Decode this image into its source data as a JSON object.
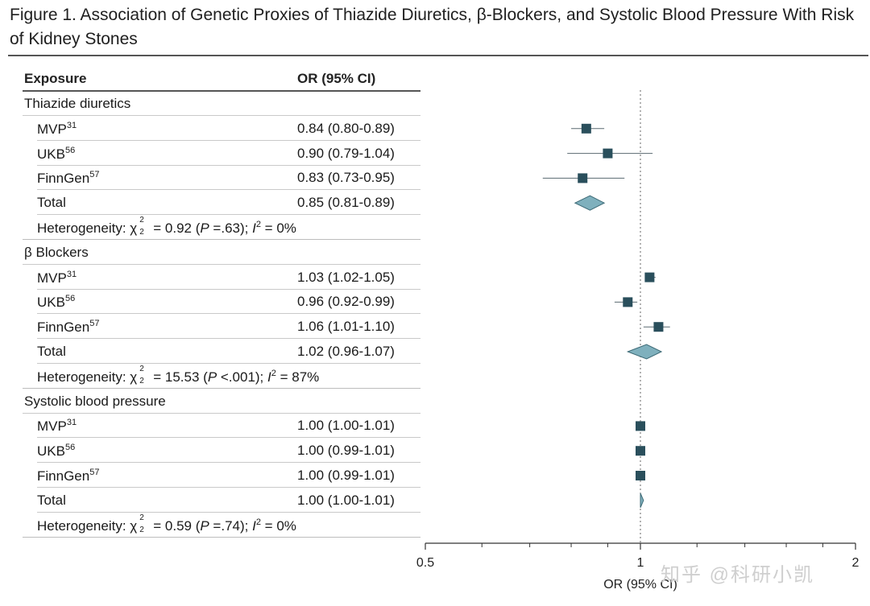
{
  "title": "Figure 1. Association of Genetic Proxies of Thiazide Diuretics, β-Blockers, and Systolic Blood Pressure With Risk of Kidney Stones",
  "columns": {
    "exposure": "Exposure",
    "or": "OR (95% CI)"
  },
  "groups": [
    {
      "name": "Thiazide diuretics",
      "studies": [
        {
          "name": "MVP",
          "ref": "31",
          "or_text": "0.84 (0.80-0.89)",
          "or": 0.84,
          "lo": 0.8,
          "hi": 0.89
        },
        {
          "name": "UKB",
          "ref": "56",
          "or_text": "0.90 (0.79-1.04)",
          "or": 0.9,
          "lo": 0.79,
          "hi": 1.04
        },
        {
          "name": "FinnGen",
          "ref": "57",
          "or_text": "0.83 (0.73-0.95)",
          "or": 0.83,
          "lo": 0.73,
          "hi": 0.95
        }
      ],
      "total": {
        "label": "Total",
        "or_text": "0.85 (0.81-0.89)",
        "or": 0.85,
        "lo": 0.81,
        "hi": 0.89
      },
      "het": {
        "prefix": "Heterogeneity: ",
        "chi_sup": "2",
        "chi_sub": "2",
        "chi_val": "= 0.92 (",
        "p": "P",
        "p_val": " =.63); ",
        "i": "I",
        "i_sup": "2",
        "i_val": " = 0%"
      }
    },
    {
      "name": "β Blockers",
      "studies": [
        {
          "name": "MVP",
          "ref": "31",
          "or_text": "1.03 (1.02-1.05)",
          "or": 1.03,
          "lo": 1.02,
          "hi": 1.05
        },
        {
          "name": "UKB",
          "ref": "56",
          "or_text": "0.96 (0.92-0.99)",
          "or": 0.96,
          "lo": 0.92,
          "hi": 0.99
        },
        {
          "name": "FinnGen",
          "ref": "57",
          "or_text": "1.06 (1.01-1.10)",
          "or": 1.06,
          "lo": 1.01,
          "hi": 1.1
        }
      ],
      "total": {
        "label": "Total",
        "or_text": "1.02 (0.96-1.07)",
        "or": 1.02,
        "lo": 0.96,
        "hi": 1.07
      },
      "het": {
        "prefix": "Heterogeneity: ",
        "chi_sup": "2",
        "chi_sub": "2",
        "chi_val": "= 15.53 (",
        "p": "P",
        "p_val": " <.001); ",
        "i": "I",
        "i_sup": "2",
        "i_val": " = 87%"
      }
    },
    {
      "name": "Systolic blood pressure",
      "studies": [
        {
          "name": "MVP",
          "ref": "31",
          "or_text": "1.00 (1.00-1.01)",
          "or": 1.0,
          "lo": 1.0,
          "hi": 1.01
        },
        {
          "name": "UKB",
          "ref": "56",
          "or_text": "1.00 (0.99-1.01)",
          "or": 1.0,
          "lo": 0.99,
          "hi": 1.01
        },
        {
          "name": "FinnGen",
          "ref": "57",
          "or_text": "1.00 (0.99-1.01)",
          "or": 1.0,
          "lo": 0.99,
          "hi": 1.01
        }
      ],
      "total": {
        "label": "Total",
        "or_text": "1.00 (1.00-1.01)",
        "or": 1.0,
        "lo": 1.0,
        "hi": 1.01
      },
      "het": {
        "prefix": "Heterogeneity: ",
        "chi_sup": "2",
        "chi_sub": "2",
        "chi_val": "= 0.59 (",
        "p": "P",
        "p_val": " =.74); ",
        "i": "I",
        "i_sup": "2",
        "i_val": " = 0%"
      }
    }
  ],
  "chart_data": {
    "type": "forest",
    "xlabel": "OR (95% CI)",
    "xscale": "log",
    "xlim": [
      0.5,
      2
    ],
    "ticks": [
      0.5,
      1,
      2
    ],
    "tick_labels": [
      "0.5",
      "1",
      "2"
    ],
    "reference_line": 1,
    "colors": {
      "square": "#2a4f5c",
      "diamond": "#7fb0bd",
      "line": "#5a6a70"
    }
  },
  "watermark": "知乎 @科研小凯"
}
